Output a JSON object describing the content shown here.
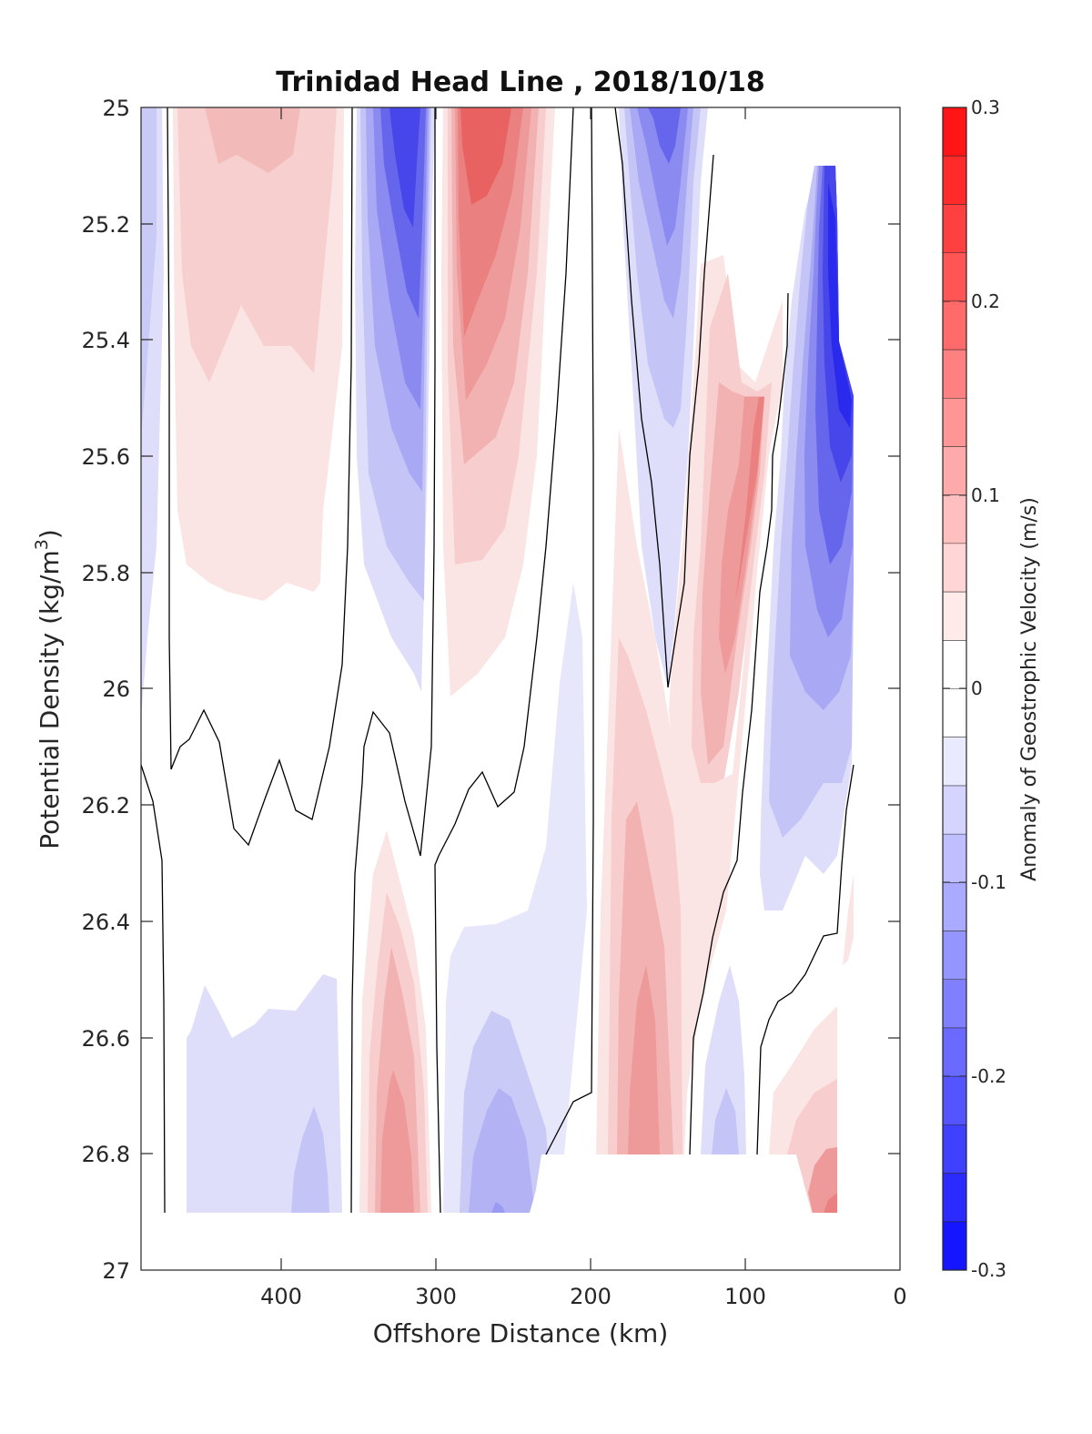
{
  "chart_data": {
    "type": "contourf",
    "title": "Trinidad Head Line , 2018/10/18",
    "xlabel": "Offshore Distance (km)",
    "ylabel": "Potential Density (kg/m",
    "ylabel_sup": "3",
    "ylabel_close": ")",
    "x_reversed": true,
    "xlim": [
      490,
      0
    ],
    "ylim": [
      25,
      27
    ],
    "y_reversed": true,
    "xticks": [
      "400",
      "300",
      "200",
      "100",
      "0"
    ],
    "yticks": [
      "25",
      "25.2",
      "25.4",
      "25.6",
      "25.8",
      "26",
      "26.2",
      "26.4",
      "26.6",
      "26.8",
      "27"
    ],
    "colorbar": {
      "label": "Anomaly of Geostrophic Velocity (m/s)",
      "range": [
        -0.3,
        0.3
      ],
      "ticks": [
        "0.3",
        "0.2",
        "0.1",
        "0",
        "-0.1",
        "-0.2",
        "-0.3"
      ],
      "levels": 24,
      "colormap": "blue-white-red",
      "neg_color": "#0000ff",
      "pos_color": "#ff0000"
    },
    "zero_contour_color": "#000000",
    "features": [
      {
        "sign": "negative",
        "x_center": 480,
        "y_top": 25.0,
        "y_bottom": 25.85,
        "peak": -0.05
      },
      {
        "sign": "positive",
        "x_center": 410,
        "y_top": 25.0,
        "y_bottom": 25.85,
        "peak": 0.08
      },
      {
        "sign": "negative",
        "x_center": 320,
        "y_top": 25.0,
        "y_bottom": 26.0,
        "peak": -0.2
      },
      {
        "sign": "positive",
        "x_center": 270,
        "y_top": 25.0,
        "y_bottom": 26.0,
        "peak": 0.2
      },
      {
        "sign": "negative",
        "x_center": 150,
        "y_top": 25.0,
        "y_bottom": 25.95,
        "peak": -0.17
      },
      {
        "sign": "positive",
        "x_center": 110,
        "y_top": 25.3,
        "y_bottom": 26.3,
        "peak": 0.12
      },
      {
        "sign": "negative",
        "x_center": 50,
        "y_top": 25.1,
        "y_bottom": 26.35,
        "peak": -0.26
      },
      {
        "sign": "negative",
        "x_center": 400,
        "y_top": 26.5,
        "y_bottom": 26.9,
        "peak": -0.06
      },
      {
        "sign": "positive",
        "x_center": 325,
        "y_top": 26.3,
        "y_bottom": 26.9,
        "peak": 0.14
      },
      {
        "sign": "negative",
        "x_center": 260,
        "y_top": 26.45,
        "y_bottom": 26.9,
        "peak": -0.11
      },
      {
        "sign": "positive",
        "x_center": 155,
        "y_top": 25.6,
        "y_bottom": 26.8,
        "peak": 0.11
      },
      {
        "sign": "negative",
        "x_center": 115,
        "y_top": 26.55,
        "y_bottom": 26.8,
        "peak": -0.05
      },
      {
        "sign": "positive",
        "x_center": 45,
        "y_top": 26.4,
        "y_bottom": 26.9,
        "peak": 0.13
      }
    ]
  }
}
